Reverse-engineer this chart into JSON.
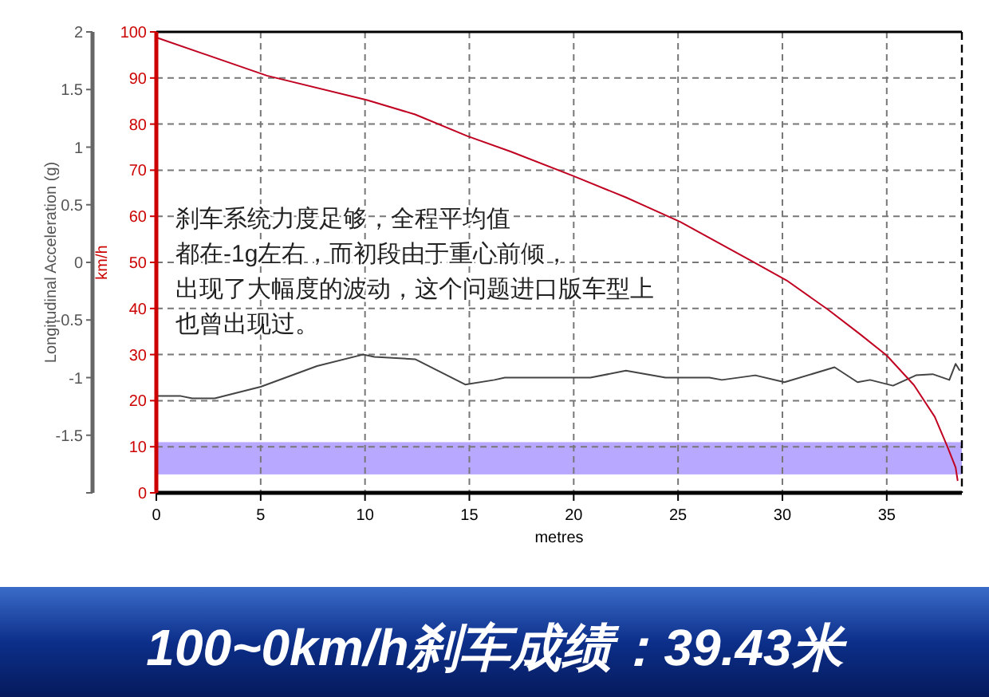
{
  "chart_data": {
    "type": "line",
    "title": "100~0km/h刹车成绩：39.43米",
    "xlabel": "metres",
    "ylabel": "Longitudinal Acceleration (g)",
    "y2label": "km/h",
    "annotations": [
      "刹车系统力度足够，全程平均值",
      "都在-1g左右，而初段由于重心前倾，",
      "出现了大幅度的波动，这个问题进口版车型上",
      "也曾出现过。"
    ],
    "series": [
      {
        "color": "#444444",
        "axis": "y",
        "x": [
          0,
          1.17,
          1.72,
          2.8,
          5,
          7.7,
          9.9,
          10.45,
          12.4,
          14.8,
          16.2,
          16.7,
          20.8,
          22.5,
          24.4,
          26.5,
          27.1,
          28.7,
          30.1,
          32.5,
          33.6,
          34.2,
          35.3,
          36.4,
          37.2,
          38.0,
          38.3,
          38.5
        ],
        "values": [
          -1.16,
          -1.16,
          -1.18,
          -1.18,
          -1.08,
          -0.9,
          -0.8,
          -0.82,
          -0.84,
          -1.06,
          -1.02,
          -1.0,
          -1.0,
          -0.94,
          -1.0,
          -1.0,
          -1.02,
          -0.98,
          -1.04,
          -0.91,
          -1.04,
          -1.02,
          -1.07,
          -0.98,
          -0.97,
          -1.02,
          -0.88,
          -0.94
        ]
      },
      {
        "color": "#c00020",
        "axis": "y2",
        "x": [
          0,
          5.3,
          10.1,
          12.4,
          14.9,
          17,
          20,
          22.5,
          25.1,
          28.6,
          30.2,
          32.2,
          33.7,
          35.0,
          36.3,
          37.3,
          37.9,
          38.3,
          38.4
        ],
        "values": [
          98.8,
          90.5,
          85.2,
          82.1,
          77.4,
          74,
          68.7,
          64.1,
          58.8,
          50.1,
          46.1,
          39.7,
          34.5,
          29.8,
          23.4,
          16.5,
          10.1,
          5.5,
          2.6
        ]
      }
    ],
    "bands": [
      {
        "axis": "y2",
        "from": 4,
        "to": 11,
        "color": "#b9a8ff"
      }
    ],
    "xlim": [
      0,
      38.6
    ],
    "xticks": [
      0,
      5,
      10,
      15,
      20,
      25,
      30,
      35
    ],
    "ylim": [
      -2,
      2
    ],
    "yticks": [
      {
        "value": -2,
        "label": null
      },
      -1.5,
      -1,
      -0.5,
      0,
      0.5,
      1,
      1.5,
      2
    ],
    "y2lim": [
      0,
      100
    ],
    "y2ticks": [
      0,
      10,
      20,
      30,
      40,
      50,
      60,
      70,
      80,
      90,
      100
    ],
    "grid": true
  }
}
